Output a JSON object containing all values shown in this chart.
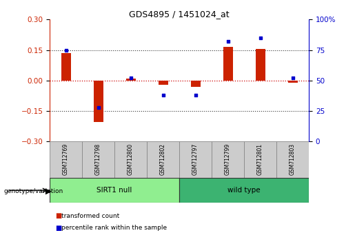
{
  "title": "GDS4895 / 1451024_at",
  "samples": [
    "GSM712769",
    "GSM712798",
    "GSM712800",
    "GSM712802",
    "GSM712797",
    "GSM712799",
    "GSM712801",
    "GSM712803"
  ],
  "bar_values": [
    0.135,
    -0.205,
    0.01,
    -0.02,
    -0.03,
    0.165,
    0.155,
    -0.01
  ],
  "dot_values_pct": [
    75,
    28,
    52,
    38,
    38,
    82,
    85,
    52
  ],
  "groups": [
    {
      "label": "SIRT1 null",
      "start": 0,
      "end": 4,
      "color": "#90EE90"
    },
    {
      "label": "wild type",
      "start": 4,
      "end": 8,
      "color": "#3CB371"
    }
  ],
  "ylim": [
    -0.3,
    0.3
  ],
  "y2lim": [
    0,
    100
  ],
  "yticks": [
    -0.3,
    -0.15,
    0,
    0.15,
    0.3
  ],
  "y2ticks": [
    0,
    25,
    50,
    75,
    100
  ],
  "bar_color": "#CC2200",
  "dot_color": "#0000CC",
  "hline_color": "#CC0000",
  "dotted_color": "#333333",
  "background_color": "#ffffff",
  "legend_items": [
    "transformed count",
    "percentile rank within the sample"
  ],
  "genotype_label": "genotype/variation"
}
